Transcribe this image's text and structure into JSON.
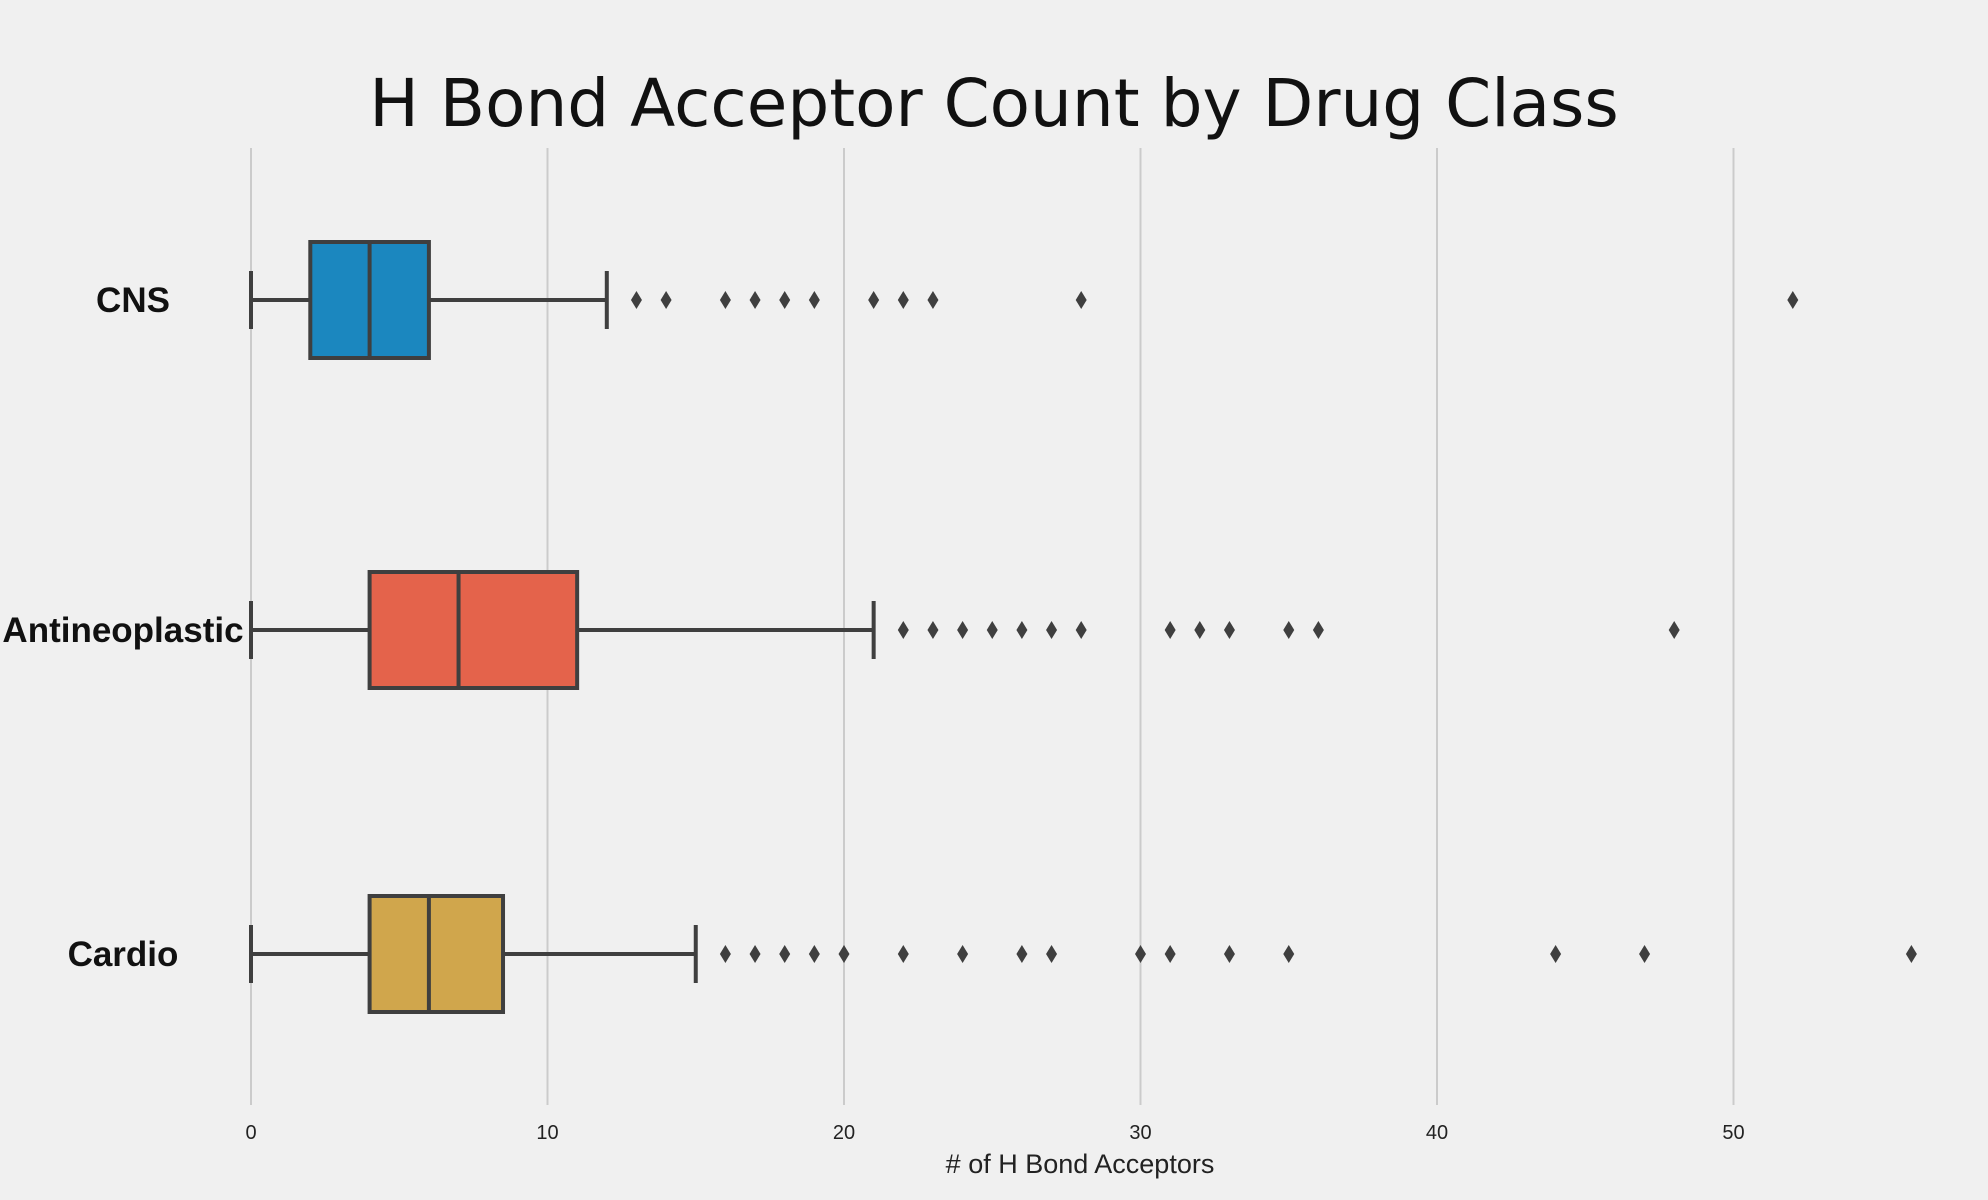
{
  "chart_data": {
    "type": "box",
    "title": "H Bond Acceptor Count by Drug Class",
    "xlabel": "# of H Bond Acceptors",
    "ylabel": "",
    "orientation": "horizontal",
    "xlim": [
      -5,
      58
    ],
    "xticks": [
      0,
      10,
      20,
      30,
      40,
      50
    ],
    "grid": "vertical",
    "legend": "none",
    "categories": [
      "CNS",
      "Antineoplastic",
      "Cardio"
    ],
    "series": [
      {
        "category": "CNS",
        "color": "#1b87bf",
        "whisker_low": 0,
        "q1": 2,
        "median": 4,
        "q3": 6,
        "whisker_high": 12,
        "outliers": [
          13,
          14,
          16,
          17,
          18,
          19,
          21,
          22,
          23,
          28,
          52
        ]
      },
      {
        "category": "Antineoplastic",
        "color": "#e4634b",
        "whisker_low": 0,
        "q1": 4,
        "median": 7,
        "q3": 11,
        "whisker_high": 21,
        "outliers": [
          22,
          23,
          24,
          25,
          26,
          27,
          28,
          31,
          32,
          33,
          35,
          36,
          48
        ]
      },
      {
        "category": "Cardio",
        "color": "#d0a64c",
        "whisker_low": 0,
        "q1": 4,
        "median": 6,
        "q3": 8.5,
        "whisker_high": 15,
        "outliers": [
          16,
          17,
          18,
          19,
          20,
          22,
          24,
          26,
          27,
          30,
          31,
          33,
          35,
          44,
          47,
          56
        ]
      }
    ]
  }
}
